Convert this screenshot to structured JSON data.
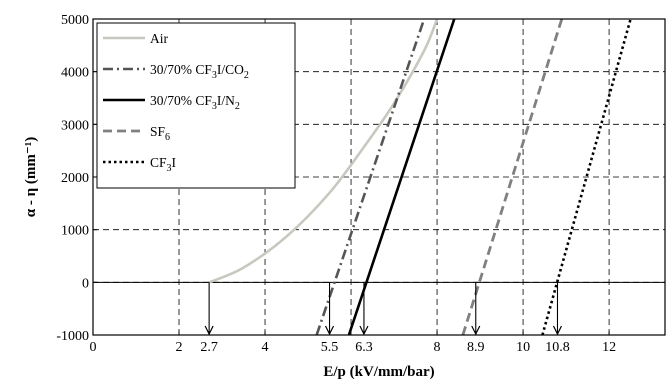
{
  "chart_data": {
    "type": "line",
    "title": "",
    "xlabel": "E/p (kV/mm/bar)",
    "ylabel": "α - η (mm⁻¹)",
    "xlim": [
      0,
      13.3
    ],
    "ylim": [
      -1000,
      5000
    ],
    "grid": true,
    "legend_position": "top-left",
    "x_ticks": [
      {
        "value": 0,
        "label": "0"
      },
      {
        "value": 2,
        "label": "2"
      },
      {
        "value": 2.7,
        "label": "2.7"
      },
      {
        "value": 4,
        "label": "4"
      },
      {
        "value": 5.5,
        "label": "5.5"
      },
      {
        "value": 6.3,
        "label": "6.3"
      },
      {
        "value": 8,
        "label": "8"
      },
      {
        "value": 8.9,
        "label": "8.9"
      },
      {
        "value": 10,
        "label": "10"
      },
      {
        "value": 10.8,
        "label": "10.8"
      },
      {
        "value": 12,
        "label": "12"
      }
    ],
    "x_grid": [
      2,
      4,
      6,
      8,
      10,
      12
    ],
    "y_ticks": [
      {
        "value": -1000,
        "label": "-1000"
      },
      {
        "value": 0,
        "label": "0"
      },
      {
        "value": 1000,
        "label": "1000"
      },
      {
        "value": 2000,
        "label": "2000"
      },
      {
        "value": 3000,
        "label": "3000"
      },
      {
        "value": 4000,
        "label": "4000"
      },
      {
        "value": 5000,
        "label": "5000"
      }
    ],
    "series": [
      {
        "legend": [
          "Air"
        ],
        "color": "#c8c8c0",
        "style": "solid",
        "curve": "smooth",
        "points": [
          [
            2.7,
            0
          ],
          [
            3.5,
            280
          ],
          [
            4.5,
            870
          ],
          [
            5.5,
            1700
          ],
          [
            6.3,
            2570
          ],
          [
            7.0,
            3400
          ],
          [
            7.7,
            4400
          ],
          [
            8.0,
            5000
          ]
        ]
      },
      {
        "legend": [
          "30/70% CF",
          "3",
          "I/CO",
          "2"
        ],
        "color": "#555555",
        "style": "dashdot",
        "points": [
          [
            5.2,
            -1000
          ],
          [
            7.7,
            5000
          ]
        ]
      },
      {
        "legend": [
          "30/70% CF",
          "3",
          "I/N",
          "2"
        ],
        "color": "#000000",
        "style": "solid",
        "points": [
          [
            5.95,
            -1000
          ],
          [
            8.4,
            5000
          ]
        ]
      },
      {
        "legend": [
          "SF",
          "6"
        ],
        "color": "#808080",
        "style": "dash",
        "points": [
          [
            8.6,
            -1000
          ],
          [
            10.9,
            5000
          ]
        ]
      },
      {
        "legend": [
          "CF",
          "3",
          "I"
        ],
        "color": "#000000",
        "style": "dot",
        "points": [
          [
            10.45,
            -1000
          ],
          [
            12.5,
            5000
          ]
        ]
      }
    ],
    "annotations": [
      {
        "type": "arrow",
        "x": 2.7,
        "from_y": 0,
        "to_y": -1000
      },
      {
        "type": "arrow",
        "x": 5.5,
        "from_y": 0,
        "to_y": -1000
      },
      {
        "type": "arrow",
        "x": 6.3,
        "from_y": 0,
        "to_y": -1000
      },
      {
        "type": "arrow",
        "x": 8.9,
        "from_y": 0,
        "to_y": -1000
      },
      {
        "type": "arrow",
        "x": 10.8,
        "from_y": 0,
        "to_y": -1000
      }
    ]
  }
}
